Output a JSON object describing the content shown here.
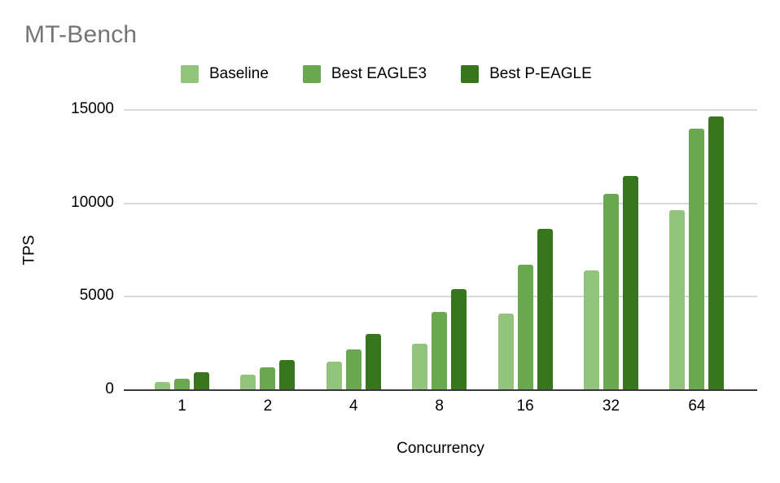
{
  "title": "MT-Bench",
  "colors": {
    "title_text": "#757575",
    "axis_text": "#000000",
    "gridline": "#d9d9d9",
    "axis_line": "#383838",
    "background": "#ffffff"
  },
  "chart_data": {
    "type": "bar",
    "title": "MT-Bench",
    "xlabel": "Concurrency",
    "ylabel": "TPS",
    "categories": [
      "1",
      "2",
      "4",
      "8",
      "16",
      "32",
      "64"
    ],
    "series": [
      {
        "name": "Baseline",
        "color": "#93c47d",
        "values": [
          420,
          840,
          1520,
          2480,
          4110,
          6410,
          9620
        ]
      },
      {
        "name": "Best EAGLE3",
        "color": "#6aa84f",
        "values": [
          630,
          1200,
          2190,
          4180,
          6700,
          10530,
          13980
        ]
      },
      {
        "name": "Best P-EAGLE",
        "color": "#38761d",
        "values": [
          950,
          1610,
          3020,
          5390,
          8620,
          11460,
          14660
        ]
      }
    ],
    "ylim": [
      0,
      15000
    ],
    "yticks": [
      0,
      5000,
      10000,
      15000
    ],
    "grid": true,
    "legend_position": "top"
  }
}
